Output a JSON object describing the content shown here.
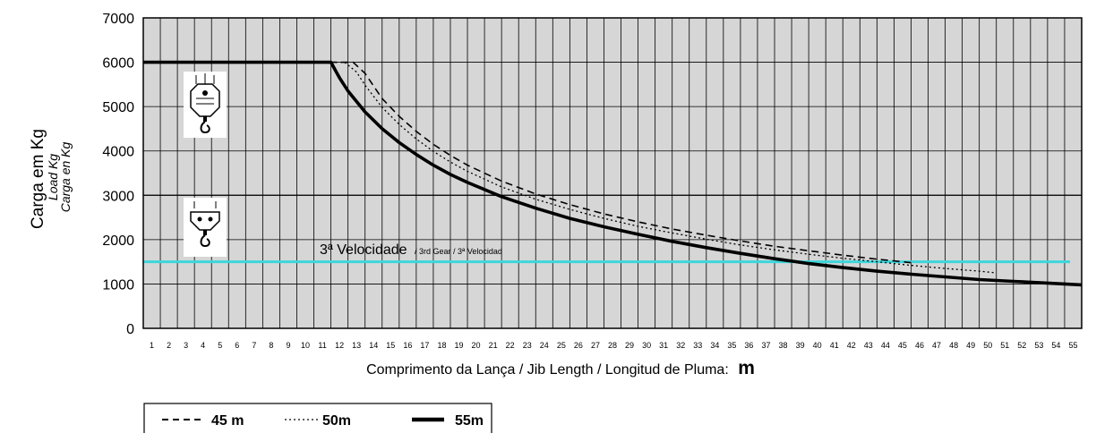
{
  "chart_data": {
    "type": "line",
    "ylabel": "Carga em Kg",
    "ylabel_sub1": "Load Kg",
    "ylabel_sub2": "Carga en Kg",
    "xlabel": "Comprimento da Lança / Jib Length / Longitud de Pluma:",
    "xlabel_unit": "m",
    "xlim": [
      1,
      56
    ],
    "ylim": [
      0,
      7000
    ],
    "yticks": [
      0,
      1000,
      2000,
      3000,
      4000,
      5000,
      6000,
      7000
    ],
    "xticks": [
      1,
      2,
      3,
      4,
      5,
      6,
      7,
      8,
      9,
      10,
      11,
      12,
      13,
      14,
      15,
      16,
      17,
      18,
      19,
      20,
      21,
      22,
      23,
      24,
      25,
      26,
      27,
      28,
      29,
      30,
      31,
      32,
      33,
      34,
      35,
      36,
      37,
      38,
      39,
      40,
      41,
      42,
      43,
      44,
      45,
      46,
      47,
      48,
      49,
      50,
      51,
      52,
      53,
      54,
      55
    ],
    "grid": true,
    "speed_line": {
      "value": 1500,
      "color": "#3dd6dc",
      "label": "3ª Velocidade",
      "label_sub": "/ 3rd Gear / 3ª Velocidad"
    },
    "reference_line": {
      "value": 3000
    },
    "series": [
      {
        "name": "45 m",
        "style": "dashed",
        "x": [
          1,
          13.3,
          14,
          15,
          16,
          17,
          18,
          19,
          20,
          22,
          24,
          26,
          28,
          30,
          32,
          34,
          36,
          38,
          40,
          42,
          44,
          46
        ],
        "y": [
          6000,
          6000,
          5750,
          5180,
          4780,
          4440,
          4150,
          3900,
          3680,
          3320,
          3030,
          2790,
          2580,
          2400,
          2240,
          2100,
          1970,
          1850,
          1750,
          1650,
          1560,
          1480
        ]
      },
      {
        "name": "50m",
        "style": "dotted",
        "x": [
          1,
          12.8,
          13.5,
          14,
          15,
          16,
          17,
          18,
          19,
          20,
          22,
          24,
          26,
          28,
          30,
          32,
          34,
          36,
          38,
          40,
          42,
          44,
          46,
          48,
          50,
          51
        ],
        "y": [
          6000,
          6000,
          5780,
          5480,
          4980,
          4600,
          4270,
          3990,
          3750,
          3540,
          3190,
          2910,
          2680,
          2480,
          2300,
          2150,
          2010,
          1880,
          1770,
          1670,
          1580,
          1500,
          1420,
          1350,
          1290,
          1250
        ]
      },
      {
        "name": "55m",
        "style": "solid",
        "x": [
          1,
          12,
          12.5,
          13,
          14,
          15,
          16,
          17,
          18,
          19,
          20,
          22,
          24,
          26,
          28,
          30,
          32,
          34,
          36,
          38,
          40,
          42,
          44,
          46,
          48,
          50,
          52,
          54,
          56
        ],
        "y": [
          6000,
          6000,
          5650,
          5350,
          4880,
          4500,
          4190,
          3920,
          3680,
          3470,
          3290,
          2970,
          2710,
          2480,
          2290,
          2120,
          1960,
          1820,
          1690,
          1570,
          1460,
          1370,
          1290,
          1220,
          1160,
          1100,
          1060,
          1020,
          980
        ]
      }
    ]
  }
}
